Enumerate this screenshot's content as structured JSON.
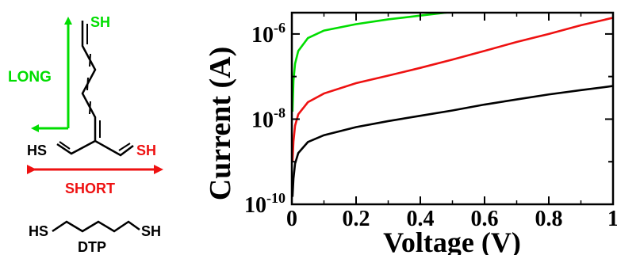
{
  "molecule": {
    "terminal_top": "SH",
    "terminal_left": "HS",
    "terminal_right": "SH",
    "long_label": "LONG",
    "short_label": "SHORT",
    "long_color": "#00dd00",
    "short_color": "#ee1111"
  },
  "dtp": {
    "left": "HS",
    "right": "SH",
    "label": "DTP"
  },
  "chart_data": {
    "type": "line",
    "title": "",
    "xlabel": "Voltage (V)",
    "ylabel": "Current (A)",
    "xlim": [
      0,
      1
    ],
    "ylim_log10": [
      -10,
      -5.5
    ],
    "yscale": "log",
    "grid": false,
    "legend": "none",
    "x_ticks": [
      0,
      0.2,
      0.4,
      0.6,
      0.8,
      1
    ],
    "x_tick_labels": [
      "0",
      "0.2",
      "0.4",
      "0.6",
      "0.8",
      "1"
    ],
    "y_ticks_log10": [
      -10,
      -8,
      -6
    ],
    "y_tick_labels": [
      {
        "base": "10",
        "exp": "-10"
      },
      {
        "base": "10",
        "exp": "-8"
      },
      {
        "base": "10",
        "exp": "-6"
      }
    ],
    "series": [
      {
        "color": "#00dd00",
        "x": [
          0.002,
          0.005,
          0.01,
          0.02,
          0.05,
          0.1,
          0.2,
          0.3,
          0.4,
          0.5,
          0.6,
          0.7,
          0.8,
          0.9,
          1.0
        ],
        "y": [
          1.5e-08,
          8e-08,
          2e-07,
          4e-07,
          8e-07,
          1.2e-06,
          1.7e-06,
          2.2e-06,
          2.7e-06,
          3.3e-06,
          4e-06,
          4.7e-06,
          5.4e-06,
          6.1e-06,
          6.8e-06
        ]
      },
      {
        "color": "#ee1111",
        "x": [
          0.002,
          0.005,
          0.01,
          0.02,
          0.05,
          0.1,
          0.2,
          0.3,
          0.4,
          0.5,
          0.6,
          0.7,
          0.8,
          0.9,
          1.0
        ],
        "y": [
          1e-09,
          3e-09,
          7e-09,
          1.3e-08,
          2.5e-08,
          4e-08,
          7e-08,
          1.05e-07,
          1.6e-07,
          2.5e-07,
          4e-07,
          6.5e-07,
          1e-06,
          1.6e-06,
          2.4e-06
        ]
      },
      {
        "color": "#000000",
        "x": [
          0.002,
          0.005,
          0.01,
          0.02,
          0.05,
          0.1,
          0.2,
          0.3,
          0.4,
          0.5,
          0.6,
          0.7,
          0.8,
          0.9,
          1.0
        ],
        "y": [
          1.5e-10,
          4e-10,
          9e-10,
          1.6e-09,
          2.9e-09,
          4.2e-09,
          6.5e-09,
          9e-09,
          1.2e-08,
          1.6e-08,
          2.2e-08,
          2.9e-08,
          3.8e-08,
          4.8e-08,
          6e-08
        ]
      }
    ]
  }
}
